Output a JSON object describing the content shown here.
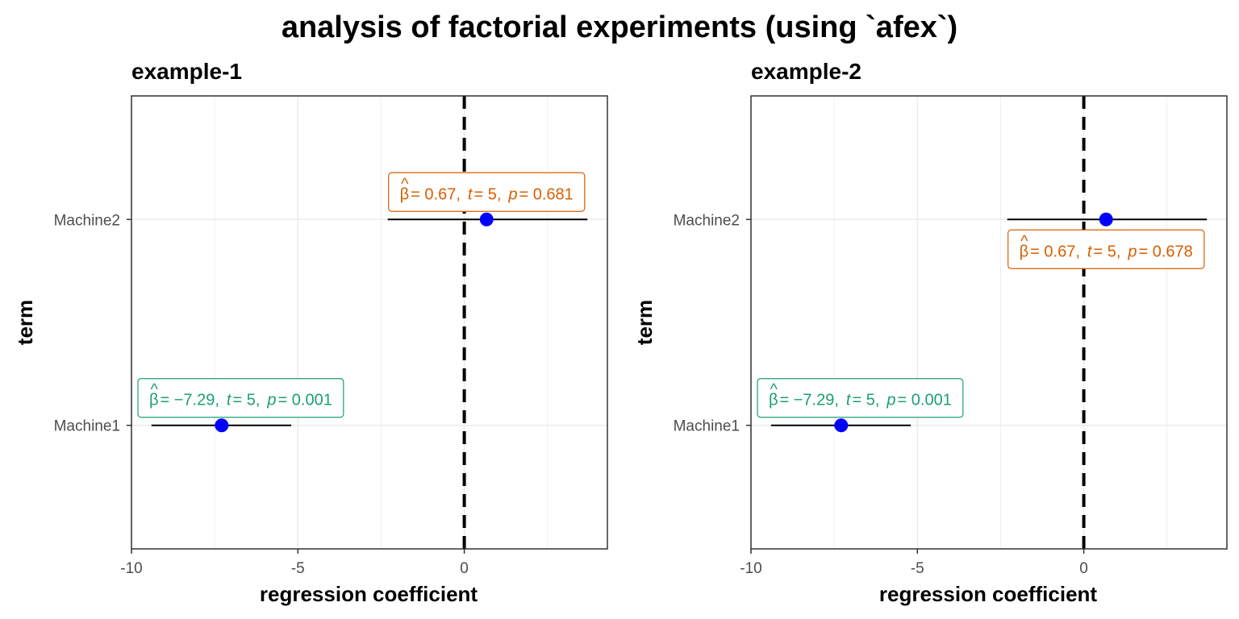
{
  "title": "analysis of factorial experiments (using `afex`)",
  "colors": {
    "point": "#0000FF",
    "errorbar": "#000000",
    "zero_line": "#000000",
    "grid": "#EBEBEB",
    "panel_border": "#333333",
    "label_machine1": "#1B9E77",
    "label_machine2": "#D95F02"
  },
  "chart_data": [
    {
      "type": "scatter",
      "title": "example-1",
      "xlabel": "regression coefficient",
      "ylabel": "term",
      "xlim": [
        -10,
        4.3
      ],
      "xticks": [
        -10,
        -5,
        0
      ],
      "xtick_labels": [
        "-10",
        "-5",
        "0"
      ],
      "categories": [
        "Machine1",
        "Machine2"
      ],
      "zero_line": 0,
      "grid": true,
      "points": [
        {
          "term": "Machine1",
          "estimate": -7.29,
          "conf_low": -9.4,
          "conf_high": -5.2,
          "label_position": "above",
          "label": {
            "beta": "= −7.29,",
            "t_sym": "t",
            "t": "= 5,",
            "p_sym": "p",
            "p": "= 0.001"
          }
        },
        {
          "term": "Machine2",
          "estimate": 0.67,
          "conf_low": -2.3,
          "conf_high": 3.7,
          "label_position": "above",
          "label": {
            "beta": "= 0.67,",
            "t_sym": "t",
            "t": "= 5,",
            "p_sym": "p",
            "p": "= 0.681"
          }
        }
      ]
    },
    {
      "type": "scatter",
      "title": "example-2",
      "xlabel": "regression coefficient",
      "ylabel": "term",
      "xlim": [
        -10,
        4.3
      ],
      "xticks": [
        -10,
        -5,
        0
      ],
      "xtick_labels": [
        "-10",
        "-5",
        "0"
      ],
      "categories": [
        "Machine1",
        "Machine2"
      ],
      "zero_line": 0,
      "grid": true,
      "points": [
        {
          "term": "Machine1",
          "estimate": -7.29,
          "conf_low": -9.4,
          "conf_high": -5.2,
          "label_position": "above",
          "label": {
            "beta": "= −7.29,",
            "t_sym": "t",
            "t": "= 5,",
            "p_sym": "p",
            "p": "= 0.001"
          }
        },
        {
          "term": "Machine2",
          "estimate": 0.67,
          "conf_low": -2.3,
          "conf_high": 3.7,
          "label_position": "below",
          "label": {
            "beta": "= 0.67,",
            "t_sym": "t",
            "t": "= 5,",
            "p_sym": "p",
            "p": "= 0.678"
          }
        }
      ]
    }
  ]
}
